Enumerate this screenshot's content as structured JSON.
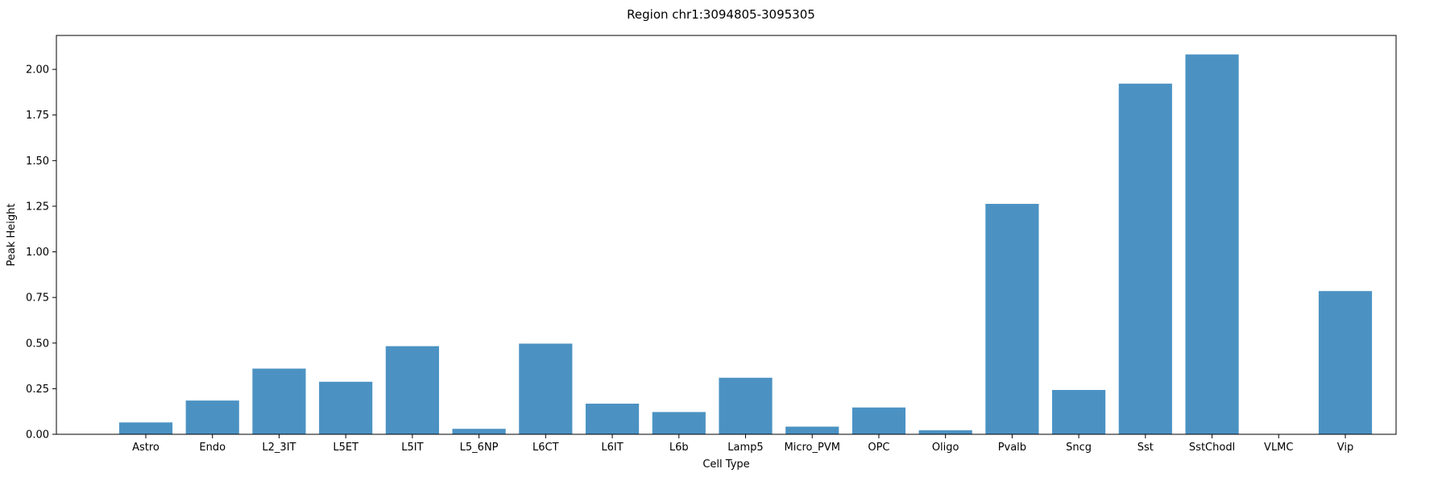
{
  "chart_data": {
    "type": "bar",
    "title": "Region chr1:3094805-3095305",
    "xlabel": "Cell Type",
    "ylabel": "Peak Height",
    "categories": [
      "Astro",
      "Endo",
      "L2_3IT",
      "L5ET",
      "L5IT",
      "L5_6NP",
      "L6CT",
      "L6IT",
      "L6b",
      "Lamp5",
      "Micro_PVM",
      "OPC",
      "Oligo",
      "Pvalb",
      "Sncg",
      "Sst",
      "SstChodl",
      "VLMC",
      "Vip"
    ],
    "values": [
      0.065,
      0.185,
      0.36,
      0.288,
      0.483,
      0.03,
      0.497,
      0.168,
      0.122,
      0.31,
      0.042,
      0.147,
      0.022,
      1.263,
      0.243,
      1.922,
      2.082,
      0.0,
      0.785
    ],
    "ylim": [
      0,
      2.186
    ],
    "yticks": [
      "0.00",
      "0.25",
      "0.50",
      "0.75",
      "1.00",
      "1.25",
      "1.50",
      "1.75",
      "2.00"
    ],
    "bar_color": "#4b92c3",
    "grid": false,
    "legend": "none"
  }
}
